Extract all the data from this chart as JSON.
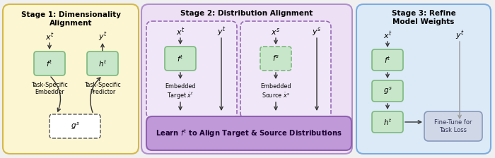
{
  "bg_color": "#f0f0f0",
  "stage1": {
    "title": "Stage 1: Dimensionality\nAlignment",
    "bg": "#fdf6d3",
    "border": "#d4b84a"
  },
  "stage2": {
    "title": "Stage 2: Distribution Alignment",
    "bg": "#ede0f5",
    "border": "#b090cc"
  },
  "stage3": {
    "title": "Stage 3: Refine\nModel Weights",
    "bg": "#dceaf7",
    "border": "#7aace0"
  },
  "box_green_light": "#c8e6c9",
  "box_green_border": "#7cb97e",
  "box_dashed_bg": "#ffffff",
  "learn_bar_bg": "#c099d8",
  "learn_bar_border": "#9060b0",
  "fine_tune_bg": "#d0d8e8",
  "fine_tune_border": "#8899bb",
  "arrow_color": "#333333",
  "arrow_gray": "#999999"
}
